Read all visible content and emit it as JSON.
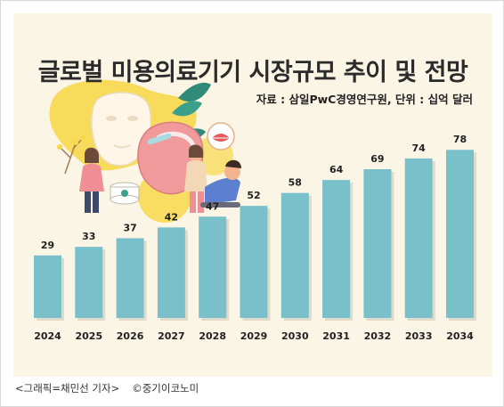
{
  "chart_data": {
    "type": "bar",
    "title": "글로벌 미용의료기기 시장규모 추이 및 전망",
    "source_note": "자료 : 삼일PwC경영연구원, 단위 : 십억 달러",
    "categories": [
      "2024",
      "2025",
      "2026",
      "2027",
      "2028",
      "2029",
      "2030",
      "2031",
      "2032",
      "2033",
      "2034"
    ],
    "values": [
      29,
      33,
      37,
      42,
      47,
      52,
      58,
      64,
      69,
      74,
      78
    ],
    "xlabel": "",
    "ylabel": "",
    "ylim": [
      0,
      80
    ],
    "grid": false,
    "legend": "none",
    "colors": {
      "bar": "#79c0cb",
      "bar_shadow": "#c9c3b3",
      "background": "#fbf5e6",
      "label": "#222222"
    }
  },
  "caption": {
    "credit": "<그래픽=채민선 기자>",
    "copyright": "©중기이코노미"
  },
  "illustration": {
    "icon": "beauty-treatment-illustration"
  }
}
